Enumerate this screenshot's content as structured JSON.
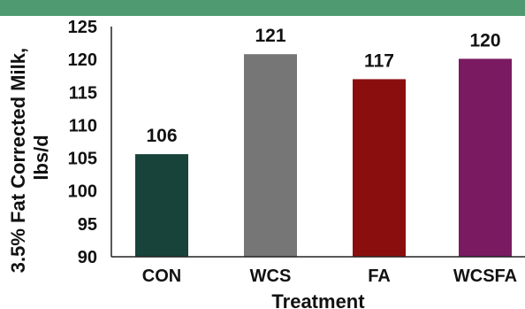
{
  "header_band": {
    "color": "#4f9a70"
  },
  "chart_data": {
    "type": "bar",
    "categories": [
      "CON",
      "WCS",
      "FA",
      "WCSFA"
    ],
    "values": [
      106,
      121,
      117,
      120
    ],
    "bar_value_positions": [
      105.6,
      120.8,
      117.0,
      120.1
    ],
    "colors": [
      "#17433a",
      "#767676",
      "#8b0e0e",
      "#7a1b62"
    ],
    "title": "",
    "xlabel": "Treatment",
    "ylabel_line1": "3.5% Fat Corrected Milk,",
    "ylabel_line2": "lbs/d",
    "ylim": [
      90,
      125
    ],
    "yticks": [
      90,
      95,
      100,
      105,
      110,
      115,
      120,
      125
    ],
    "grid": false,
    "legend": "none"
  }
}
